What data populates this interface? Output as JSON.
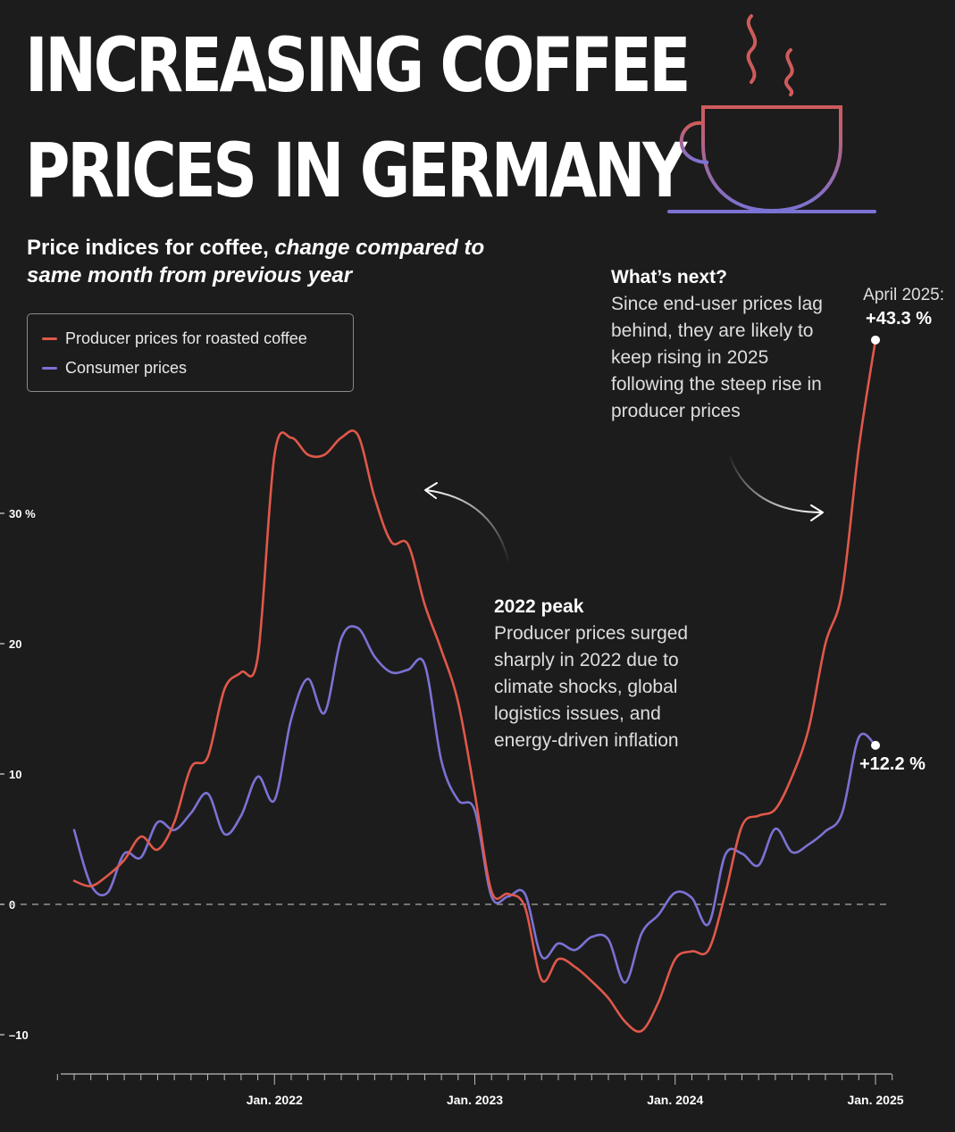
{
  "title": {
    "line1": "INCREASING COFFEE",
    "line2": "PRICES IN GERMANY"
  },
  "subtitle": {
    "plain": "Price indices for coffee, ",
    "italic": "change compared to same month from previous year"
  },
  "legend": {
    "producer": "Producer prices for roasted coffee",
    "consumer": "Consumer prices"
  },
  "colors": {
    "background": "#1c1c1c",
    "producer": "#e0584a",
    "consumer": "#7b72d4",
    "text": "#ffffff"
  },
  "icon": "coffee-cup-icon",
  "annotations": {
    "peak": {
      "head": "2022 peak",
      "body": "Producer prices surged sharply in 2022 due to climate shocks, global logistics issues, and energy-driven inflation"
    },
    "next": {
      "head": "What’s next?",
      "body": "Since end-user prices lag behind, they are likely to keep rising in 2025 following the steep rise in producer prices"
    },
    "producer_end": {
      "date": "April 2025:",
      "value": "+43.3 %"
    },
    "consumer_end": {
      "value": "+12.2 %"
    }
  },
  "chart_data": {
    "type": "line",
    "title": "Increasing coffee prices in Germany",
    "ylabel": "Change compared to same month from previous year (%)",
    "xlabel": "",
    "ylim": [
      -12.5,
      35
    ],
    "yticks": [
      {
        "value": -10,
        "label": "–10"
      },
      {
        "value": 0,
        "label": "0"
      },
      {
        "value": 10,
        "label": "10"
      },
      {
        "value": 20,
        "label": "20"
      },
      {
        "value": 30,
        "label": "30 %"
      }
    ],
    "xticks": [
      {
        "index": 12,
        "label": "Jan. 2022"
      },
      {
        "index": 24,
        "label": "Jan. 2023"
      },
      {
        "index": 36,
        "label": "Jan. 2024"
      },
      {
        "index": 48,
        "label": "Jan. 2025"
      }
    ],
    "x_start": "Jan. 2021",
    "x_end": "Apr. 2025",
    "zero_line": true,
    "series": [
      {
        "name": "Producer prices for roasted coffee",
        "color": "#e0584a",
        "values": [
          1.8,
          1.4,
          2.2,
          3.4,
          5.2,
          4.2,
          6.3,
          10.5,
          11.3,
          16.5,
          17.8,
          19.0,
          34.5,
          35.8,
          34.5,
          34.5,
          35.8,
          36.0,
          31.2,
          27.8,
          27.6,
          23.0,
          19.5,
          15.5,
          8.5,
          1.0,
          0.8,
          -0.2,
          -5.8,
          -4.2,
          -4.8,
          -5.9,
          -7.2,
          -9.0,
          -9.7,
          -7.5,
          -4.2,
          -3.6,
          -3.5,
          0.8,
          6.0,
          6.8,
          7.3,
          9.8,
          13.5,
          20.0,
          24.0,
          35.0,
          43.3
        ],
        "end_label": "+43.3 %"
      },
      {
        "name": "Consumer prices",
        "color": "#7b72d4",
        "values": [
          5.7,
          1.5,
          0.9,
          3.9,
          3.6,
          6.3,
          5.7,
          7.0,
          8.5,
          5.4,
          6.8,
          9.8,
          8.0,
          14.2,
          17.3,
          14.7,
          20.4,
          21.2,
          19.0,
          17.8,
          18.0,
          18.4,
          11.0,
          8.0,
          7.2,
          0.6,
          0.6,
          0.8,
          -4.0,
          -3.0,
          -3.5,
          -2.5,
          -2.7,
          -6.0,
          -2.2,
          -0.8,
          0.9,
          0.5,
          -1.5,
          3.8,
          3.9,
          3.0,
          5.8,
          4.0,
          4.6,
          5.6,
          7.0,
          12.8,
          12.2
        ],
        "end_label": "+12.2 %"
      }
    ]
  }
}
